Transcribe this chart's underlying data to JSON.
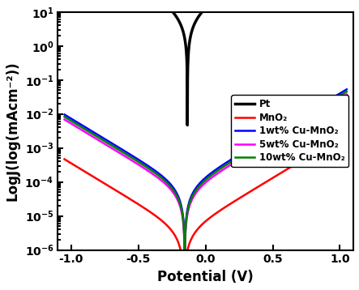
{
  "title": "",
  "xlabel": "Potential (V)",
  "ylabel": "LogJ(log(mAcm⁻²))",
  "xlim": [
    -1.1,
    1.1
  ],
  "ylim_log": [
    1e-06,
    10
  ],
  "series": [
    {
      "label": "Pt",
      "color": "black",
      "linewidth": 2.5,
      "j0": 5.5,
      "v_eq": -0.135,
      "alpha": 7.5,
      "v_range": [
        -1.05,
        1.05
      ]
    },
    {
      "label": "MnO₂",
      "color": "red",
      "linewidth": 1.8,
      "j0": 3.5e-06,
      "v_eq": -0.16,
      "alpha": 5.5,
      "v_range": [
        -1.05,
        1.05
      ]
    },
    {
      "label": "1wt% Cu-MnO₂",
      "color": "blue",
      "linewidth": 1.8,
      "j0": 7e-05,
      "v_eq": -0.155,
      "alpha": 5.5,
      "v_range": [
        -1.05,
        1.05
      ]
    },
    {
      "label": "5wt% Cu-MnO₂",
      "color": "magenta",
      "linewidth": 1.8,
      "j0": 5e-05,
      "v_eq": -0.155,
      "alpha": 5.5,
      "v_range": [
        -1.05,
        1.05
      ]
    },
    {
      "label": "10wt% Cu-MnO₂",
      "color": "green",
      "linewidth": 1.8,
      "j0": 6e-05,
      "v_eq": -0.155,
      "alpha": 5.5,
      "v_range": [
        -1.05,
        1.05
      ]
    }
  ],
  "legend_loc": "center right",
  "legend_fontsize": 8.5,
  "tick_fontsize": 10,
  "label_fontsize": 12
}
